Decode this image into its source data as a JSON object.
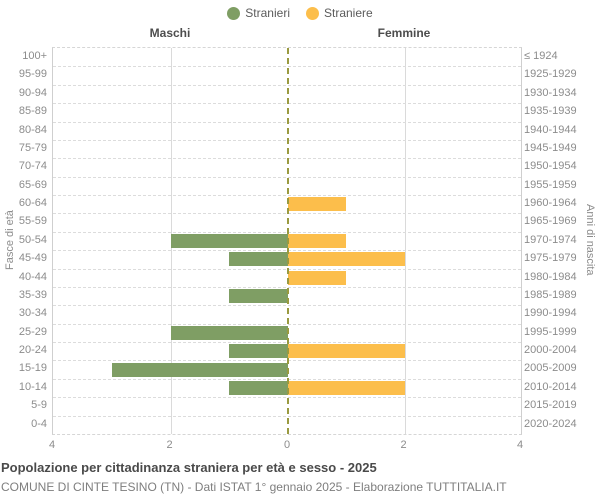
{
  "chart_data": {
    "type": "bar",
    "variant": "population-pyramid",
    "title": "Popolazione per cittadinanza straniera per età e sesso - 2025",
    "subtitle": "COMUNE DI CINTE TESINO (TN) - Dati ISTAT 1° gennaio 2025 - Elaborazione TUTTITALIA.IT",
    "left_header": "Maschi",
    "right_header": "Femmine",
    "ylabel_left": "Fasce di età",
    "ylabel_right": "Anni di nascita",
    "age_groups": [
      "100+",
      "95-99",
      "90-94",
      "85-89",
      "80-84",
      "75-79",
      "70-74",
      "65-69",
      "60-64",
      "55-59",
      "50-54",
      "45-49",
      "40-44",
      "35-39",
      "30-34",
      "25-29",
      "20-24",
      "15-19",
      "10-14",
      "5-9",
      "0-4"
    ],
    "birth_years": [
      "≤ 1924",
      "1925-1929",
      "1930-1934",
      "1935-1939",
      "1940-1944",
      "1945-1949",
      "1950-1954",
      "1955-1959",
      "1960-1964",
      "1965-1969",
      "1970-1974",
      "1975-1979",
      "1980-1984",
      "1985-1989",
      "1990-1994",
      "1995-1999",
      "2000-2004",
      "2005-2009",
      "2010-2014",
      "2015-2019",
      "2020-2024"
    ],
    "series": [
      {
        "name": "Stranieri",
        "side": "left",
        "color": "#7f9e64",
        "values": [
          0,
          0,
          0,
          0,
          0,
          0,
          0,
          0,
          0,
          0,
          2,
          1,
          0,
          1,
          0,
          2,
          1,
          3,
          1,
          0,
          0
        ]
      },
      {
        "name": "Straniere",
        "side": "right",
        "color": "#fcbe4b",
        "values": [
          0,
          0,
          0,
          0,
          0,
          0,
          0,
          0,
          1,
          0,
          1,
          2,
          1,
          0,
          0,
          0,
          2,
          0,
          2,
          0,
          0
        ]
      }
    ],
    "x_max_each_side": 4,
    "x_ticks": [
      "4",
      "2",
      "0",
      "2",
      "4"
    ],
    "grid": true,
    "legend_position": "top-center",
    "colors": {
      "male_bar": "#7f9e64",
      "female_bar": "#fcbe4b",
      "center_line": "#9a9a40",
      "gridline": "#dcdcdc",
      "axis_text": "#8c8c8c"
    }
  }
}
